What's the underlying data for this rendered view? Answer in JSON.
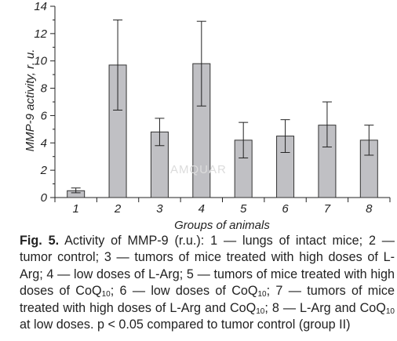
{
  "chart_data": {
    "type": "bar",
    "categories": [
      "1",
      "2",
      "3",
      "4",
      "5",
      "6",
      "7",
      "8"
    ],
    "values": [
      0.5,
      9.7,
      4.8,
      9.8,
      4.2,
      4.5,
      5.3,
      4.2
    ],
    "error_high": [
      0.7,
      13.0,
      5.8,
      12.9,
      5.5,
      5.7,
      7.0,
      5.3
    ],
    "error_low": [
      0.35,
      6.4,
      3.8,
      6.7,
      2.9,
      3.3,
      3.7,
      3.1
    ],
    "xlabel": "Groups of animals",
    "ylabel": "MMP-9 activity, r. u.",
    "ylim": [
      0,
      14
    ],
    "yticks": [
      0,
      2,
      4,
      6,
      8,
      10,
      12,
      14
    ],
    "grid": false,
    "bar_color": "#c0c0c4",
    "edge_color": "#333333"
  },
  "watermark": "AMQUAR",
  "caption": {
    "fig_label": "Fig. 5.",
    "p1": " Activity of MMP-9 (r.u.): 1 — lungs of intact mice; 2 — tumor control; 3 — tumors of mice treated with high doses of L-Arg; 4 — low doses of L-Arg; 5 — tumors of mice treated with high doses of CoQ",
    "sub1": "10",
    "p2": "; 6 — low doses of CoQ",
    "sub2": "10",
    "p3": "; 7 — tumors of mice treated with high doses of L-Arg and CoQ",
    "sub3": "10",
    "p4": "; 8 — L-Arg and CoQ",
    "sub4": "10",
    "p5": " at low doses. p < 0.05 compared to tumor control (group II)"
  }
}
